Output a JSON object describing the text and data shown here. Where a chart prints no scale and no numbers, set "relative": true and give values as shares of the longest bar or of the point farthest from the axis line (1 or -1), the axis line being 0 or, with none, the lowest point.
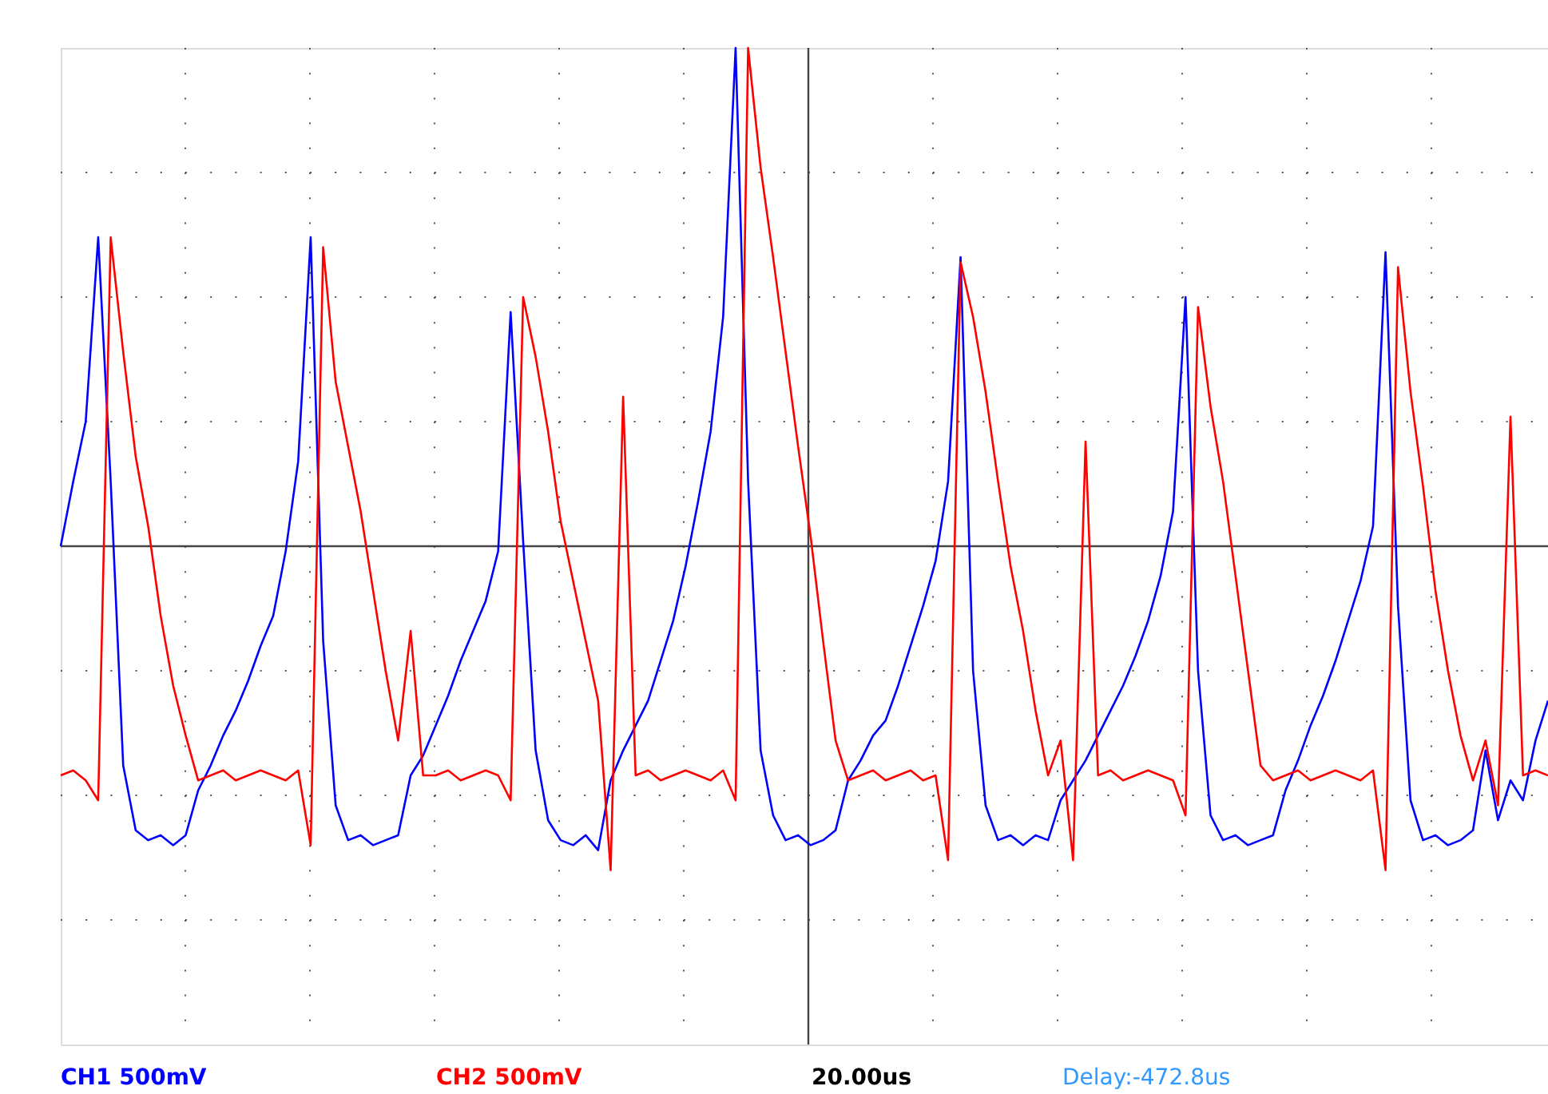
{
  "chart_data": {
    "type": "line",
    "relative": true,
    "grid": true,
    "line_style": "solid",
    "marker": "none",
    "categories": [
      null,
      null,
      null,
      null,
      null,
      null,
      null,
      null,
      null,
      null,
      null,
      null,
      null,
      null,
      null,
      null,
      null,
      null,
      null,
      null,
      null,
      null,
      null,
      null,
      null,
      null,
      null,
      null,
      null,
      null,
      null,
      null,
      null,
      null,
      null,
      null,
      null,
      null,
      null,
      null,
      null,
      null,
      null,
      null,
      null,
      null,
      null,
      null,
      null,
      null,
      null,
      null,
      null,
      null,
      null,
      null,
      null,
      null,
      null,
      null,
      null,
      null,
      null,
      null,
      null,
      null,
      null,
      null,
      null,
      null,
      null,
      null,
      null,
      null,
      null,
      null,
      null,
      null,
      null,
      null,
      null,
      null,
      null,
      null,
      null,
      null,
      null,
      null,
      null,
      null,
      null,
      null,
      null,
      null,
      null,
      null,
      null,
      null,
      null,
      null,
      null,
      null,
      null,
      null,
      null,
      null,
      null,
      null,
      null,
      null,
      null,
      null,
      null,
      null,
      null,
      null,
      null,
      null,
      null,
      null
    ],
    "series": [
      {
        "color": "#0000ff",
        "values": [
          0,
          0.13,
          0.25,
          0.62,
          0.13,
          -0.44,
          -0.57,
          -0.59,
          -0.58,
          -0.6,
          -0.58,
          -0.49,
          -0.44,
          -0.38,
          -0.33,
          -0.27,
          -0.2,
          -0.14,
          -0.01,
          0.17,
          0.62,
          -0.19,
          -0.52,
          -0.59,
          -0.58,
          -0.6,
          -0.59,
          -0.58,
          -0.46,
          -0.42,
          -0.36,
          -0.3,
          -0.23,
          -0.17,
          -0.11,
          -0.01,
          0.47,
          0.01,
          -0.41,
          -0.55,
          -0.59,
          -0.6,
          -0.58,
          -0.61,
          -0.47,
          -0.41,
          -0.36,
          -0.31,
          -0.23,
          -0.15,
          -0.04,
          0.09,
          0.23,
          0.46,
          1,
          0.13,
          -0.41,
          -0.54,
          -0.59,
          -0.58,
          -0.6,
          -0.59,
          -0.57,
          -0.47,
          -0.43,
          -0.38,
          -0.35,
          -0.28,
          -0.2,
          -0.12,
          -0.03,
          0.13,
          0.58,
          -0.25,
          -0.52,
          -0.59,
          -0.58,
          -0.6,
          -0.58,
          -0.59,
          -0.51,
          -0.47,
          -0.43,
          -0.38,
          -0.33,
          -0.28,
          -0.22,
          -0.15,
          -0.06,
          0.07,
          0.5,
          -0.25,
          -0.54,
          -0.59,
          -0.58,
          -0.6,
          -0.59,
          -0.58,
          -0.49,
          -0.43,
          -0.36,
          -0.3,
          -0.23,
          -0.15,
          -0.07,
          0.04,
          0.59,
          -0.12,
          -0.51,
          -0.59,
          -0.58,
          -0.6,
          -0.59,
          -0.57,
          -0.41,
          -0.55,
          -0.47,
          -0.51,
          -0.39,
          -0.31
        ]
      },
      {
        "color": "#ff0000",
        "values": [
          -0.46,
          -0.45,
          -0.47,
          -0.51,
          0.62,
          0.39,
          0.18,
          0.04,
          -0.14,
          -0.28,
          -0.38,
          -0.47,
          -0.46,
          -0.45,
          -0.47,
          -0.46,
          -0.45,
          -0.46,
          -0.47,
          -0.45,
          -0.6,
          0.6,
          0.33,
          0.2,
          0.07,
          -0.09,
          -0.25,
          -0.39,
          -0.17,
          -0.46,
          -0.46,
          -0.45,
          -0.47,
          -0.46,
          -0.45,
          -0.46,
          -0.51,
          0.5,
          0.38,
          0.23,
          0.05,
          -0.07,
          -0.19,
          -0.31,
          -0.65,
          0.3,
          -0.46,
          -0.45,
          -0.47,
          -0.46,
          -0.45,
          -0.46,
          -0.47,
          -0.45,
          -0.51,
          1,
          0.76,
          0.58,
          0.39,
          0.2,
          0.02,
          -0.19,
          -0.39,
          -0.47,
          -0.46,
          -0.45,
          -0.47,
          -0.46,
          -0.45,
          -0.47,
          -0.46,
          -0.63,
          0.57,
          0.46,
          0.31,
          0.13,
          -0.04,
          -0.17,
          -0.33,
          -0.46,
          -0.39,
          -0.63,
          0.21,
          -0.46,
          -0.45,
          -0.47,
          -0.46,
          -0.45,
          -0.46,
          -0.47,
          -0.54,
          0.48,
          0.28,
          0.13,
          -0.06,
          -0.25,
          -0.44,
          -0.47,
          -0.46,
          -0.45,
          -0.47,
          -0.46,
          -0.45,
          -0.46,
          -0.47,
          -0.45,
          -0.65,
          0.56,
          0.31,
          0.12,
          -0.09,
          -0.25,
          -0.38,
          -0.47,
          -0.39,
          -0.52,
          0.26,
          -0.46,
          -0.45,
          -0.46
        ]
      }
    ],
    "annotations": [
      "CH1 500mV",
      "CH2 500mV",
      "20.00us",
      "Delay:-472.8us"
    ]
  }
}
